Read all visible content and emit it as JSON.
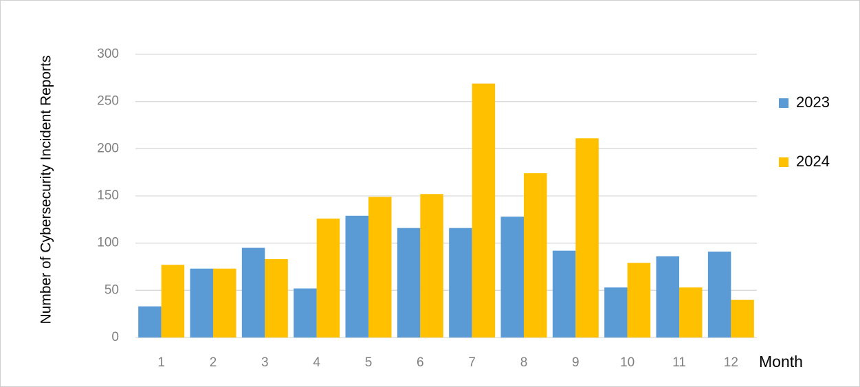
{
  "chart_data": {
    "type": "bar",
    "y_label": "Number of Cybersecurity Incident Reports",
    "x_label": "Month",
    "categories": [
      "1",
      "2",
      "3",
      "4",
      "5",
      "6",
      "7",
      "8",
      "9",
      "10",
      "11",
      "12"
    ],
    "series": [
      {
        "name": "2023",
        "color": "#5b9bd5",
        "values": [
          33,
          73,
          95,
          52,
          129,
          116,
          116,
          128,
          92,
          53,
          86,
          91
        ]
      },
      {
        "name": "2024",
        "color": "#ffc000",
        "values": [
          77,
          73,
          83,
          126,
          149,
          152,
          269,
          174,
          211,
          79,
          53,
          40
        ]
      }
    ],
    "ylim": [
      0,
      300
    ],
    "yticks": [
      0,
      50,
      100,
      150,
      200,
      250,
      300
    ],
    "grid": true,
    "legend": "right"
  }
}
